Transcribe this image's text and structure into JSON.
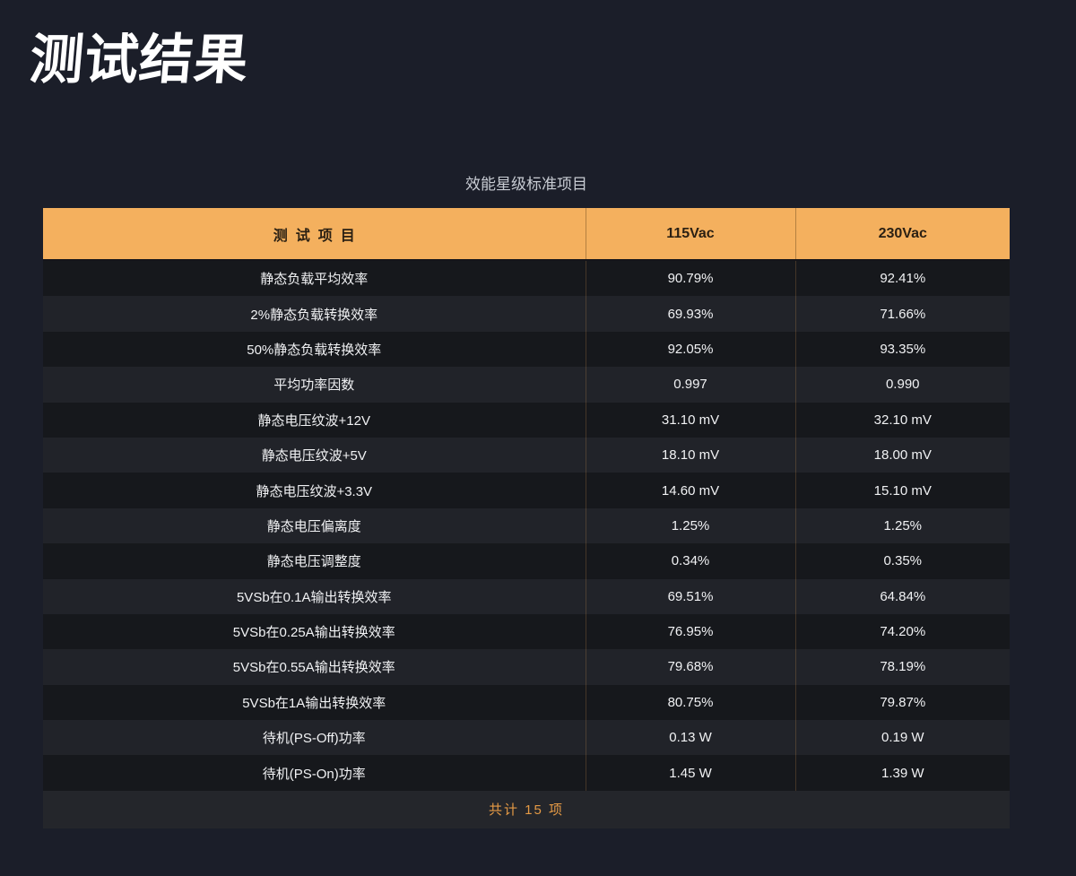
{
  "page": {
    "title": "测试结果",
    "background_color": "#1b1e29",
    "accent_color": "#f4b05e",
    "footer_text_color": "#e59a45"
  },
  "table": {
    "caption": "效能星级标准项目",
    "columns": [
      "测试项目",
      "115Vac",
      "230Vac"
    ],
    "rows": [
      {
        "label": "静态负载平均效率",
        "v115": "90.79%",
        "v230": "92.41%"
      },
      {
        "label": "2%静态负载转换效率",
        "v115": "69.93%",
        "v230": "71.66%"
      },
      {
        "label": "50%静态负载转换效率",
        "v115": "92.05%",
        "v230": "93.35%"
      },
      {
        "label": "平均功率因数",
        "v115": "0.997",
        "v230": "0.990"
      },
      {
        "label": "静态电压纹波+12V",
        "v115": "31.10 mV",
        "v230": "32.10 mV"
      },
      {
        "label": "静态电压纹波+5V",
        "v115": "18.10 mV",
        "v230": "18.00 mV"
      },
      {
        "label": "静态电压纹波+3.3V",
        "v115": "14.60 mV",
        "v230": "15.10 mV"
      },
      {
        "label": "静态电压偏离度",
        "v115": "1.25%",
        "v230": "1.25%"
      },
      {
        "label": "静态电压调整度",
        "v115": "0.34%",
        "v230": "0.35%"
      },
      {
        "label": "5VSb在0.1A输出转换效率",
        "v115": "69.51%",
        "v230": "64.84%"
      },
      {
        "label": "5VSb在0.25A输出转换效率",
        "v115": "76.95%",
        "v230": "74.20%"
      },
      {
        "label": "5VSb在0.55A输出转换效率",
        "v115": "79.68%",
        "v230": "78.19%"
      },
      {
        "label": "5VSb在1A输出转换效率",
        "v115": "80.75%",
        "v230": "79.87%"
      },
      {
        "label": "待机(PS-Off)功率",
        "v115": "0.13 W",
        "v230": "0.19 W"
      },
      {
        "label": "待机(PS-On)功率",
        "v115": "1.45 W",
        "v230": "1.39 W"
      }
    ],
    "footer": "共计 15 项"
  }
}
